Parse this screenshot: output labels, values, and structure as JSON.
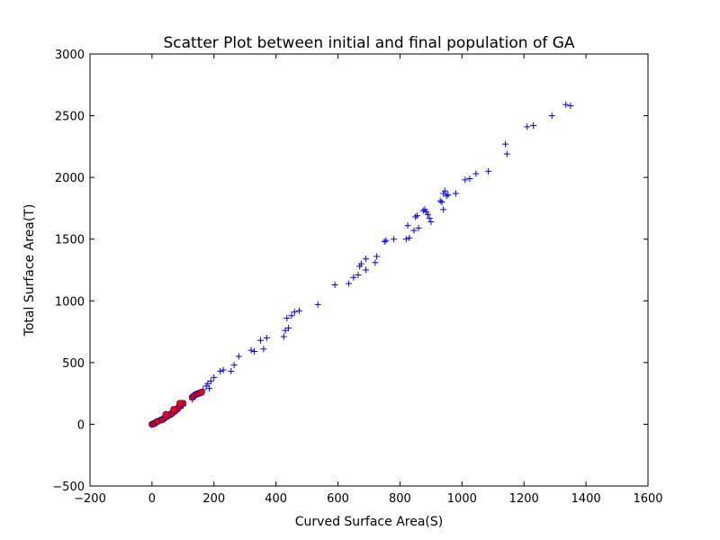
{
  "chart_data": {
    "type": "scatter",
    "title": "Scatter Plot between initial and final population of GA",
    "xlabel": "Curved Surface Area(S)",
    "ylabel": "Total Surface Area(T)",
    "xlim": [
      -200,
      1600
    ],
    "ylim": [
      -500,
      3000
    ],
    "xticks": [
      -200,
      0,
      200,
      400,
      600,
      800,
      1000,
      1200,
      1400,
      1600
    ],
    "yticks": [
      -500,
      0,
      500,
      1000,
      1500,
      2000,
      2500,
      3000
    ],
    "grid": false,
    "legend": "none",
    "series": [
      {
        "marker": "plus",
        "color": "#0000ff",
        "points": [
          [
            5,
            5
          ],
          [
            10,
            15
          ],
          [
            15,
            20
          ],
          [
            20,
            30
          ],
          [
            25,
            35
          ],
          [
            30,
            40
          ],
          [
            35,
            45
          ],
          [
            40,
            50
          ],
          [
            45,
            60
          ],
          [
            50,
            70
          ],
          [
            55,
            80
          ],
          [
            60,
            85
          ],
          [
            70,
            95
          ],
          [
            80,
            110
          ],
          [
            90,
            130
          ],
          [
            100,
            150
          ],
          [
            130,
            200
          ],
          [
            140,
            230
          ],
          [
            150,
            250
          ],
          [
            160,
            260
          ],
          [
            165,
            280
          ],
          [
            175,
            310
          ],
          [
            180,
            330
          ],
          [
            185,
            290
          ],
          [
            190,
            350
          ],
          [
            200,
            380
          ],
          [
            220,
            430
          ],
          [
            230,
            440
          ],
          [
            255,
            430
          ],
          [
            265,
            480
          ],
          [
            280,
            550
          ],
          [
            320,
            600
          ],
          [
            330,
            590
          ],
          [
            350,
            680
          ],
          [
            360,
            610
          ],
          [
            370,
            700
          ],
          [
            425,
            710
          ],
          [
            430,
            760
          ],
          [
            435,
            860
          ],
          [
            440,
            780
          ],
          [
            450,
            880
          ],
          [
            460,
            910
          ],
          [
            475,
            920
          ],
          [
            535,
            970
          ],
          [
            590,
            1130
          ],
          [
            635,
            1140
          ],
          [
            650,
            1190
          ],
          [
            665,
            1210
          ],
          [
            670,
            1280
          ],
          [
            675,
            1300
          ],
          [
            690,
            1340
          ],
          [
            690,
            1250
          ],
          [
            720,
            1310
          ],
          [
            725,
            1360
          ],
          [
            750,
            1480
          ],
          [
            755,
            1490
          ],
          [
            780,
            1500
          ],
          [
            820,
            1500
          ],
          [
            825,
            1610
          ],
          [
            830,
            1510
          ],
          [
            845,
            1570
          ],
          [
            850,
            1680
          ],
          [
            855,
            1690
          ],
          [
            860,
            1590
          ],
          [
            875,
            1730
          ],
          [
            880,
            1740
          ],
          [
            885,
            1720
          ],
          [
            890,
            1700
          ],
          [
            895,
            1670
          ],
          [
            900,
            1640
          ],
          [
            930,
            1810
          ],
          [
            935,
            1800
          ],
          [
            940,
            1870
          ],
          [
            940,
            1740
          ],
          [
            945,
            1890
          ],
          [
            950,
            1850
          ],
          [
            955,
            1860
          ],
          [
            980,
            1870
          ],
          [
            1010,
            1980
          ],
          [
            1025,
            1990
          ],
          [
            1045,
            2030
          ],
          [
            1085,
            2050
          ],
          [
            1140,
            2270
          ],
          [
            1145,
            2190
          ],
          [
            1210,
            2410
          ],
          [
            1230,
            2420
          ],
          [
            1290,
            2500
          ],
          [
            1335,
            2590
          ],
          [
            1350,
            2580
          ]
        ]
      },
      {
        "marker": "circle",
        "color": "#ff0000",
        "points": [
          [
            0,
            0
          ],
          [
            5,
            5
          ],
          [
            10,
            10
          ],
          [
            15,
            20
          ],
          [
            20,
            25
          ],
          [
            30,
            35
          ],
          [
            35,
            40
          ],
          [
            40,
            50
          ],
          [
            45,
            60
          ],
          [
            50,
            65
          ],
          [
            55,
            75
          ],
          [
            60,
            80
          ],
          [
            65,
            90
          ],
          [
            70,
            100
          ],
          [
            75,
            110
          ],
          [
            80,
            120
          ],
          [
            85,
            135
          ],
          [
            90,
            150
          ],
          [
            95,
            160
          ],
          [
            100,
            170
          ],
          [
            130,
            220
          ],
          [
            135,
            230
          ],
          [
            140,
            240
          ],
          [
            145,
            245
          ],
          [
            150,
            250
          ],
          [
            155,
            255
          ],
          [
            160,
            260
          ],
          [
            45,
            80
          ],
          [
            70,
            120
          ],
          [
            90,
            170
          ]
        ]
      }
    ]
  }
}
